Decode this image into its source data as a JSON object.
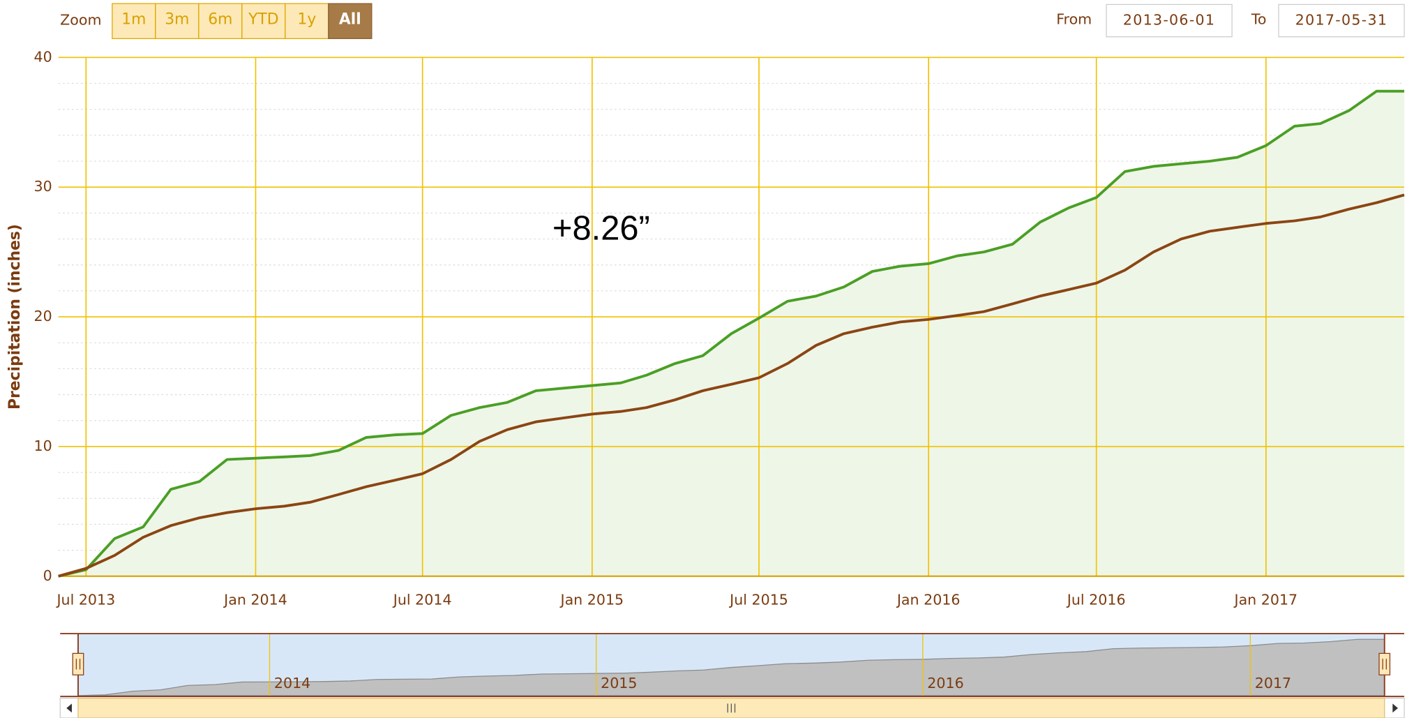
{
  "chart_data": {
    "type": "line",
    "zoom_label": "Zoom",
    "zoom_buttons": [
      "1m",
      "3m",
      "6m",
      "YTD",
      "1y",
      "All"
    ],
    "zoom_selected": "All",
    "from_label": "From",
    "from_value": "2013-06-01",
    "to_label": "To",
    "to_value": "2017-05-31",
    "y_label": "Precipitation (inches)",
    "annotation": "+8.26”",
    "x": [
      "2013-06-01",
      "2013-07-01",
      "2013-08-01",
      "2013-09-01",
      "2013-10-01",
      "2013-11-01",
      "2013-12-01",
      "2014-01-01",
      "2014-02-01",
      "2014-03-01",
      "2014-04-01",
      "2014-05-01",
      "2014-06-01",
      "2014-07-01",
      "2014-08-01",
      "2014-09-01",
      "2014-10-01",
      "2014-11-01",
      "2014-12-01",
      "2015-01-01",
      "2015-02-01",
      "2015-03-01",
      "2015-04-01",
      "2015-05-01",
      "2015-06-01",
      "2015-07-01",
      "2015-08-01",
      "2015-09-01",
      "2015-10-01",
      "2015-11-01",
      "2015-12-01",
      "2016-01-01",
      "2016-02-01",
      "2016-03-01",
      "2016-04-01",
      "2016-05-01",
      "2016-06-01",
      "2016-07-01",
      "2016-08-01",
      "2016-09-01",
      "2016-10-01",
      "2016-11-01",
      "2016-12-01",
      "2017-01-01",
      "2017-02-01",
      "2017-03-01",
      "2017-04-01",
      "2017-05-01",
      "2017-05-31"
    ],
    "series": [
      {
        "color": "#4a9f25",
        "fill": "#eef6e8",
        "values": [
          0,
          0.5,
          2.9,
          3.8,
          6.7,
          7.3,
          9.0,
          9.1,
          9.2,
          9.3,
          9.7,
          10.7,
          10.9,
          11.0,
          12.4,
          13.0,
          13.4,
          14.3,
          14.5,
          14.7,
          14.9,
          15.5,
          16.4,
          17.0,
          18.7,
          19.9,
          21.2,
          21.6,
          22.3,
          23.5,
          23.9,
          24.1,
          24.7,
          25.0,
          25.6,
          27.3,
          28.4,
          29.2,
          31.2,
          31.6,
          31.8,
          32.0,
          32.3,
          33.2,
          34.7,
          34.9,
          35.9,
          37.4,
          37.4
        ]
      },
      {
        "color": "#8b4513",
        "values": [
          0,
          0.6,
          1.6,
          3.0,
          3.9,
          4.5,
          4.9,
          5.2,
          5.4,
          5.7,
          6.3,
          6.9,
          7.4,
          7.9,
          9.0,
          10.4,
          11.3,
          11.9,
          12.2,
          12.5,
          12.7,
          13.0,
          13.6,
          14.3,
          14.8,
          15.3,
          16.4,
          17.8,
          18.7,
          19.2,
          19.6,
          19.8,
          20.1,
          20.4,
          21.0,
          21.6,
          22.1,
          22.6,
          23.6,
          25.0,
          26.0,
          26.6,
          26.9,
          27.2,
          27.4,
          27.7,
          28.3,
          28.8,
          29.4
        ]
      }
    ],
    "xlim": [
      "2013-06-01",
      "2017-05-31"
    ],
    "xticks": [
      {
        "value": "2013-07-01",
        "label": "Jul 2013"
      },
      {
        "value": "2014-01-01",
        "label": "Jan 2014"
      },
      {
        "value": "2014-07-01",
        "label": "Jul 2014"
      },
      {
        "value": "2015-01-01",
        "label": "Jan 2015"
      },
      {
        "value": "2015-07-01",
        "label": "Jul 2015"
      },
      {
        "value": "2016-01-01",
        "label": "Jan 2016"
      },
      {
        "value": "2016-07-01",
        "label": "Jul 2016"
      },
      {
        "value": "2017-01-01",
        "label": "Jan 2017"
      }
    ],
    "ylim": [
      0,
      40
    ],
    "yticks": [
      0,
      10,
      20,
      30,
      40
    ],
    "y_minor_ticks": [
      2,
      4,
      6,
      8,
      12,
      14,
      16,
      18,
      22,
      24,
      26,
      28,
      32,
      34,
      36,
      38
    ],
    "grid": true,
    "grid_color": "#f2c200",
    "navigator": {
      "ylim": [
        0,
        40
      ],
      "xticks": [
        {
          "value": "2014-01-01",
          "label": "2014"
        },
        {
          "value": "2015-01-01",
          "label": "2015"
        },
        {
          "value": "2016-01-01",
          "label": "2016"
        },
        {
          "value": "2017-01-01",
          "label": "2017"
        }
      ]
    }
  }
}
